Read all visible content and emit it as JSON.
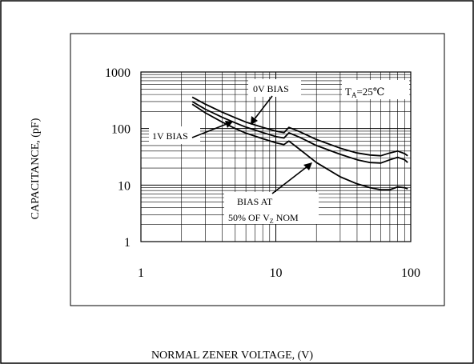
{
  "chart_data": {
    "type": "line",
    "xscale": "log",
    "yscale": "log",
    "xlim": [
      1,
      100
    ],
    "ylim": [
      1,
      1000
    ],
    "xlabel": "NORMAL ZENER VOLTAGE, (V)",
    "ylabel": "CAPACITANCE, (pF)",
    "xticks": [
      1,
      10,
      100
    ],
    "yticks": [
      1,
      10,
      100,
      1000
    ],
    "xtick_labels": [
      "1",
      "10",
      "100"
    ],
    "ytick_labels": [
      "1",
      "10",
      "100",
      "1000"
    ],
    "grid": true,
    "annotations": {
      "ta_main": "T",
      "ta_sub": "A",
      "ta_rest": "=25℃",
      "zero_bias": "0V BIAS",
      "one_bias": "1V BIAS",
      "half_bias_line1": "BIAS AT",
      "half_bias_line2_main": "50% OF V",
      "half_bias_line2_sub": "Z",
      "half_bias_line2_rest": " NOM"
    },
    "series": [
      {
        "label": "0V BIAS",
        "points": [
          [
            2.4,
            360
          ],
          [
            3,
            270
          ],
          [
            4,
            195
          ],
          [
            5,
            155
          ],
          [
            6,
            130
          ],
          [
            8,
            105
          ],
          [
            10,
            90
          ],
          [
            11.5,
            85
          ],
          [
            12.5,
            105
          ],
          [
            15,
            88
          ],
          [
            20,
            64
          ],
          [
            30,
            45
          ],
          [
            40,
            37
          ],
          [
            50,
            34
          ],
          [
            60,
            33
          ],
          [
            70,
            37
          ],
          [
            80,
            40
          ],
          [
            90,
            36
          ],
          [
            95,
            33
          ]
        ]
      },
      {
        "label": "1V BIAS",
        "points": [
          [
            2.4,
            300
          ],
          [
            3,
            220
          ],
          [
            4,
            158
          ],
          [
            5,
            126
          ],
          [
            6,
            106
          ],
          [
            8,
            85
          ],
          [
            10,
            72
          ],
          [
            11.5,
            68
          ],
          [
            12.5,
            84
          ],
          [
            15,
            70
          ],
          [
            20,
            50
          ],
          [
            30,
            35
          ],
          [
            40,
            28
          ],
          [
            50,
            25
          ],
          [
            60,
            24.5
          ],
          [
            70,
            28
          ],
          [
            80,
            31
          ],
          [
            90,
            28
          ],
          [
            95,
            25
          ]
        ]
      },
      {
        "label": "BIAS AT 50% OF VZ NOM",
        "points": [
          [
            2.4,
            270
          ],
          [
            3,
            190
          ],
          [
            4,
            130
          ],
          [
            5,
            100
          ],
          [
            6,
            83
          ],
          [
            8,
            66
          ],
          [
            10,
            56
          ],
          [
            11.5,
            52
          ],
          [
            12.5,
            60
          ],
          [
            15,
            43
          ],
          [
            20,
            25
          ],
          [
            30,
            14
          ],
          [
            40,
            10.5
          ],
          [
            50,
            9
          ],
          [
            60,
            8.3
          ],
          [
            70,
            8.3
          ],
          [
            80,
            9.3
          ],
          [
            90,
            9.0
          ],
          [
            95,
            8.6
          ]
        ]
      }
    ]
  }
}
